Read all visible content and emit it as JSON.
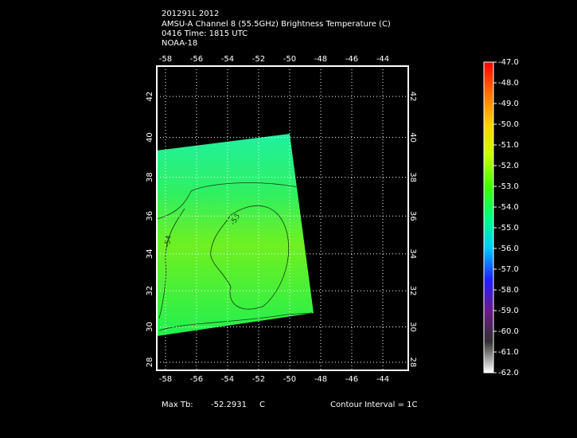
{
  "header": {
    "lines": [
      "201291L 2012",
      "AMSU-A Channel 8 (55.5GHz) Brightness Temperature (C)",
      "0416 Time: 1815 UTC",
      "NOAA-18"
    ]
  },
  "chart_data": {
    "type": "map",
    "projection": "mercator",
    "xlim": [
      -58.56,
      -42.36
    ],
    "ylim": [
      27.54,
      43.44
    ],
    "xticks": [
      -58,
      -56,
      -54,
      -52,
      -50,
      -48,
      -46,
      -44
    ],
    "yticks": [
      28,
      30,
      32,
      34,
      36,
      38,
      40,
      42
    ],
    "grid": true,
    "colorbar": {
      "lim": [
        -62,
        -47
      ],
      "colors": [
        "#ffffff",
        "#303030",
        "#6a1a8a",
        "#2020ff",
        "#00c8ff",
        "#00ff80",
        "#40ff00",
        "#c8ff00",
        "#ffd000",
        "#ff7000",
        "#ff0000"
      ],
      "ticks": [
        {
          "value": -47,
          "label": "-47.0"
        },
        {
          "value": -48,
          "label": "-48.0"
        },
        {
          "value": -49,
          "label": "-49.0"
        },
        {
          "value": -50,
          "label": "-50.0"
        },
        {
          "value": -51,
          "label": "-51.0"
        },
        {
          "value": -52,
          "label": "-52.0"
        },
        {
          "value": -53,
          "label": "-53.0"
        },
        {
          "value": -54,
          "label": "-54.0"
        },
        {
          "value": -55,
          "label": "-55.0"
        },
        {
          "value": -56,
          "label": "-56.0"
        },
        {
          "value": -57,
          "label": "-57.0"
        },
        {
          "value": -58,
          "label": "-58.0"
        },
        {
          "value": -59,
          "label": "-59.0"
        },
        {
          "value": -60,
          "label": "-60.0"
        },
        {
          "value": -61,
          "label": "-61.0"
        },
        {
          "value": -62,
          "label": "-62.0"
        }
      ]
    },
    "contour_labels": [
      "-54",
      "-53"
    ]
  },
  "footer": {
    "max_label": "Max Tb:",
    "max_value": -52.2931,
    "max_unit": "C",
    "contour_interval": "Contour Interval = 1C"
  }
}
